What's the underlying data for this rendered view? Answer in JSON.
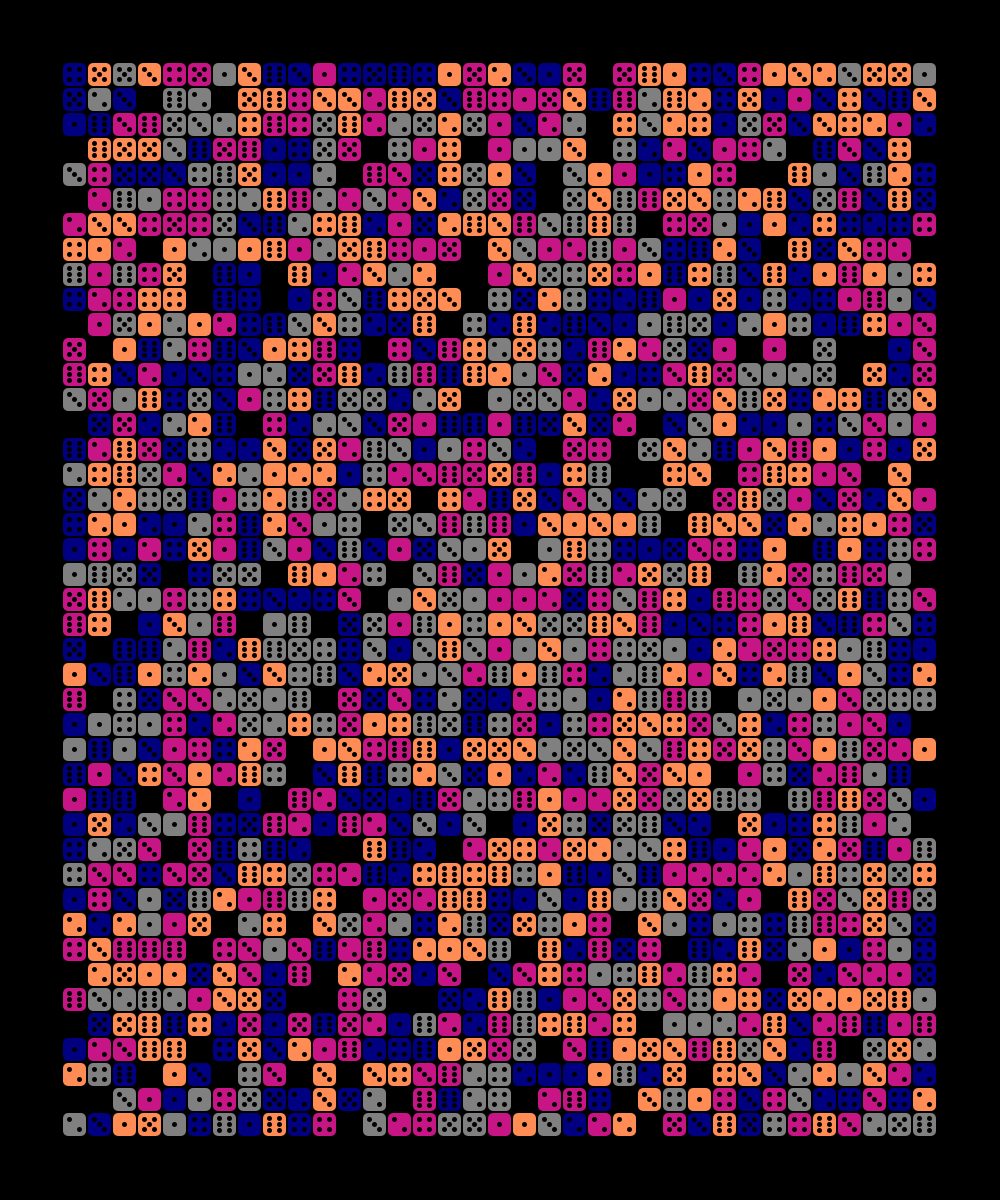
{
  "artwork": {
    "background": "#000000",
    "pip_color": "#000000",
    "palette": [
      "#c71585",
      "#000080",
      "#ff8c55",
      "#808080"
    ],
    "columns": 35,
    "rows": 43,
    "empty_fraction": 0.08,
    "faces": [
      1,
      2,
      3,
      4,
      5,
      6
    ]
  }
}
